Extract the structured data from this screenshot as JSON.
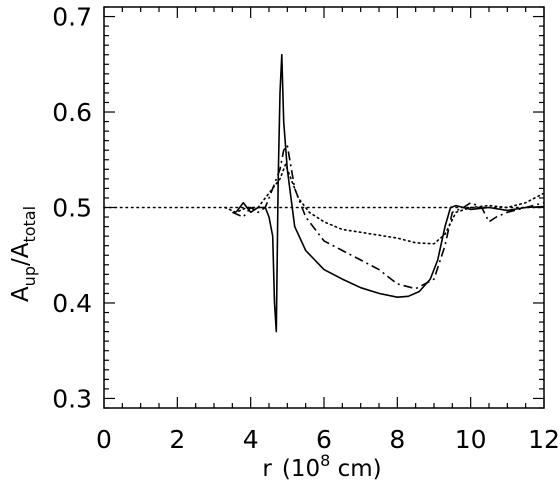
{
  "chart_data": {
    "type": "line",
    "xlabel": {
      "main": "r",
      "unit": "(10",
      "exp": "8",
      "unit_tail": " cm)"
    },
    "ylabel": {
      "base": "A",
      "sub1": "up",
      "slash": "/",
      "base2": "A",
      "sub2": "total"
    },
    "xlim": [
      0,
      12
    ],
    "ylim": [
      0.29,
      0.71
    ],
    "x_ticks": [
      0,
      2,
      4,
      6,
      8,
      10,
      12
    ],
    "x_tick_labels": [
      "0",
      "2",
      "4",
      "6",
      "8",
      "10",
      "12"
    ],
    "y_ticks": [
      0.3,
      0.4,
      0.5,
      0.6,
      0.7
    ],
    "y_tick_labels": [
      "0.3",
      "0.4",
      "0.5",
      "0.6",
      "0.7"
    ],
    "grid": false,
    "legend": "none",
    "reference_line": {
      "y": 0.5,
      "style": "dotted"
    },
    "series": [
      {
        "style": "solid",
        "x": [
          3.6,
          3.8,
          4.0,
          4.2,
          4.4,
          4.5,
          4.6,
          4.65,
          4.7,
          4.75,
          4.8,
          4.85,
          4.9,
          5.0,
          5.2,
          5.5,
          6.0,
          6.5,
          7.0,
          7.5,
          8.0,
          8.3,
          8.6,
          8.9,
          9.1,
          9.3,
          9.45,
          9.6,
          10.0,
          10.5,
          11.0,
          11.5,
          12.0
        ],
        "y": [
          0.495,
          0.505,
          0.495,
          0.5,
          0.5,
          0.49,
          0.47,
          0.4,
          0.37,
          0.53,
          0.62,
          0.66,
          0.59,
          0.54,
          0.48,
          0.455,
          0.435,
          0.425,
          0.416,
          0.41,
          0.406,
          0.407,
          0.412,
          0.425,
          0.445,
          0.48,
          0.5,
          0.502,
          0.498,
          0.5,
          0.497,
          0.5,
          0.501
        ]
      },
      {
        "style": "dash-dot",
        "x": [
          3.5,
          3.8,
          4.0,
          4.2,
          4.4,
          4.6,
          4.8,
          4.9,
          5.0,
          5.2,
          5.5,
          6.0,
          6.5,
          7.0,
          7.5,
          8.0,
          8.5,
          9.0,
          9.3,
          9.5,
          9.8,
          10.0,
          10.3,
          10.5,
          10.7,
          11.0,
          11.5,
          12.0
        ],
        "y": [
          0.495,
          0.49,
          0.5,
          0.495,
          0.5,
          0.52,
          0.54,
          0.56,
          0.565,
          0.52,
          0.49,
          0.465,
          0.455,
          0.445,
          0.435,
          0.42,
          0.415,
          0.425,
          0.46,
          0.495,
          0.5,
          0.505,
          0.5,
          0.485,
          0.49,
          0.495,
          0.5,
          0.505
        ]
      },
      {
        "style": "dotted",
        "x": [
          3.3,
          3.6,
          3.9,
          4.2,
          4.4,
          4.6,
          4.8,
          4.95,
          5.1,
          5.3,
          5.6,
          6.0,
          6.5,
          7.0,
          7.5,
          8.0,
          8.5,
          9.0,
          9.3,
          9.6,
          10.0,
          10.5,
          11.0,
          11.5,
          12.0
        ],
        "y": [
          0.5,
          0.495,
          0.5,
          0.5,
          0.51,
          0.52,
          0.53,
          0.545,
          0.53,
          0.51,
          0.495,
          0.485,
          0.477,
          0.474,
          0.471,
          0.468,
          0.463,
          0.462,
          0.472,
          0.495,
          0.5,
          0.502,
          0.5,
          0.505,
          0.515
        ]
      }
    ]
  }
}
